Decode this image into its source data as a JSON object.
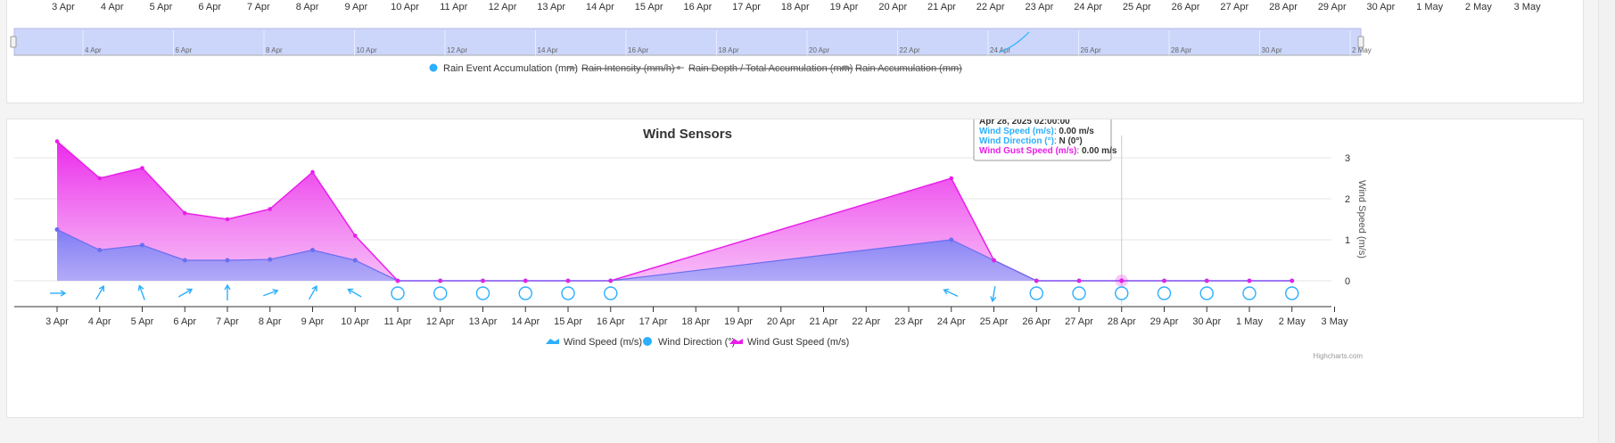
{
  "top_chart": {
    "axis_dates": [
      "3 Apr",
      "4 Apr",
      "5 Apr",
      "6 Apr",
      "7 Apr",
      "8 Apr",
      "9 Apr",
      "10 Apr",
      "11 Apr",
      "12 Apr",
      "13 Apr",
      "14 Apr",
      "15 Apr",
      "16 Apr",
      "17 Apr",
      "18 Apr",
      "19 Apr",
      "20 Apr",
      "21 Apr",
      "22 Apr",
      "23 Apr",
      "24 Apr",
      "25 Apr",
      "26 Apr",
      "27 Apr",
      "28 Apr",
      "29 Apr",
      "30 Apr",
      "1 May",
      "2 May",
      "3 May"
    ],
    "navigator_dates": [
      "4 Apr",
      "6 Apr",
      "8 Apr",
      "10 Apr",
      "12 Apr",
      "14 Apr",
      "16 Apr",
      "18 Apr",
      "20 Apr",
      "22 Apr",
      "24 Apr",
      "26 Apr",
      "28 Apr",
      "30 Apr",
      "2 May"
    ],
    "legend": [
      {
        "label": "Rain Event Accumulation (mm)",
        "active": true,
        "color": "#2caffe",
        "symbol": "circle"
      },
      {
        "label": "Rain Intensity (mm/h)",
        "active": false,
        "color": "#666666",
        "symbol": "line"
      },
      {
        "label": "Rain Depth / Total Accumulation (mm)",
        "active": false,
        "color": "#666666",
        "symbol": "line"
      },
      {
        "label": "Rain Accumulation (mm)",
        "active": false,
        "color": "#666666",
        "symbol": "square"
      }
    ]
  },
  "chart_data": {
    "type": "area",
    "title": "Wind Sensors",
    "ylabel": "Wind Speed (m/s)",
    "ylim": [
      0,
      3.5
    ],
    "yticks": [
      0,
      1,
      2,
      3
    ],
    "x_dates": [
      "3 Apr",
      "4 Apr",
      "5 Apr",
      "6 Apr",
      "7 Apr",
      "8 Apr",
      "9 Apr",
      "10 Apr",
      "11 Apr",
      "12 Apr",
      "13 Apr",
      "14 Apr",
      "15 Apr",
      "16 Apr",
      "17 Apr",
      "18 Apr",
      "19 Apr",
      "20 Apr",
      "21 Apr",
      "22 Apr",
      "23 Apr",
      "24 Apr",
      "25 Apr",
      "26 Apr",
      "27 Apr",
      "28 Apr",
      "29 Apr",
      "30 Apr",
      "1 May",
      "2 May",
      "3 May"
    ],
    "grid": true,
    "legend_position": "bottom",
    "series": [
      {
        "name": "Wind Speed (m/s)",
        "color": "#2caffe",
        "points": [
          [
            "3 Apr",
            1.25
          ],
          [
            "4 Apr",
            0.75
          ],
          [
            "5 Apr",
            0.87
          ],
          [
            "6 Apr",
            0.5
          ],
          [
            "7 Apr",
            0.5
          ],
          [
            "8 Apr",
            0.52
          ],
          [
            "9 Apr",
            0.75
          ],
          [
            "10 Apr",
            0.5
          ],
          [
            "11 Apr",
            0
          ],
          [
            "12 Apr",
            0
          ],
          [
            "13 Apr",
            0
          ],
          [
            "14 Apr",
            0
          ],
          [
            "15 Apr",
            0
          ],
          [
            "16 Apr",
            0
          ],
          [
            "24 Apr",
            1.0
          ],
          [
            "25 Apr",
            0.5
          ],
          [
            "26 Apr",
            0
          ],
          [
            "27 Apr",
            0
          ],
          [
            "28 Apr",
            0
          ],
          [
            "29 Apr",
            0
          ],
          [
            "30 Apr",
            0
          ],
          [
            "1 May",
            0
          ],
          [
            "2 May",
            0
          ]
        ]
      },
      {
        "name": "Wind Direction (°)",
        "color": "#2caffe",
        "arrows": [
          [
            "3 Apr",
            90
          ],
          [
            "4 Apr",
            30
          ],
          [
            "5 Apr",
            -20
          ],
          [
            "6 Apr",
            60
          ],
          [
            "7 Apr",
            0
          ],
          [
            "8 Apr",
            70
          ],
          [
            "9 Apr",
            30
          ],
          [
            "10 Apr",
            -60
          ],
          [
            "24 Apr",
            -65
          ],
          [
            "25 Apr",
            190
          ]
        ],
        "calm": [
          "11 Apr",
          "12 Apr",
          "13 Apr",
          "14 Apr",
          "15 Apr",
          "16 Apr",
          "26 Apr",
          "27 Apr",
          "28 Apr",
          "29 Apr",
          "30 Apr",
          "1 May",
          "2 May"
        ]
      },
      {
        "name": "Wind Gust Speed (m/s)",
        "color": "#e91ee9",
        "points": [
          [
            "3 Apr",
            3.4
          ],
          [
            "4 Apr",
            2.5
          ],
          [
            "5 Apr",
            2.75
          ],
          [
            "6 Apr",
            1.65
          ],
          [
            "7 Apr",
            1.5
          ],
          [
            "8 Apr",
            1.75
          ],
          [
            "9 Apr",
            2.65
          ],
          [
            "10 Apr",
            1.1
          ],
          [
            "11 Apr",
            0
          ],
          [
            "12 Apr",
            0
          ],
          [
            "13 Apr",
            0
          ],
          [
            "14 Apr",
            0
          ],
          [
            "15 Apr",
            0
          ],
          [
            "16 Apr",
            0
          ],
          [
            "24 Apr",
            2.5
          ],
          [
            "25 Apr",
            0.5
          ],
          [
            "26 Apr",
            0
          ],
          [
            "27 Apr",
            0
          ],
          [
            "28 Apr",
            0
          ],
          [
            "29 Apr",
            0
          ],
          [
            "30 Apr",
            0
          ],
          [
            "1 May",
            0
          ],
          [
            "2 May",
            0
          ]
        ]
      }
    ],
    "hover_date": "28 Apr"
  },
  "tooltip": {
    "title": "Apr 28, 2025 02:00:00",
    "rows": [
      {
        "label": "Wind Speed (m/s)",
        "value": "0.00 m/s",
        "color": "#2caffe"
      },
      {
        "label": "Wind Direction (°)",
        "value": "N (0°)",
        "color": "#2caffe"
      },
      {
        "label": "Wind Gust Speed (m/s)",
        "value": "0.00 m/s",
        "color": "#e91ee9"
      }
    ]
  },
  "credits": "Highcharts.com"
}
